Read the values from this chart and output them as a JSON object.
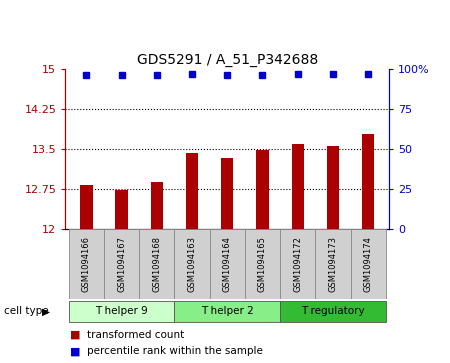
{
  "title": "GDS5291 / A_51_P342688",
  "samples": [
    "GSM1094166",
    "GSM1094167",
    "GSM1094168",
    "GSM1094163",
    "GSM1094164",
    "GSM1094165",
    "GSM1094172",
    "GSM1094173",
    "GSM1094174"
  ],
  "bar_values": [
    12.82,
    12.72,
    12.88,
    13.42,
    13.32,
    13.47,
    13.6,
    13.56,
    13.77
  ],
  "percentile_values": [
    96,
    96,
    96,
    97,
    96,
    96,
    97,
    97,
    97
  ],
  "bar_color": "#aa0000",
  "dot_color": "#0000cc",
  "ylim_left": [
    12,
    15
  ],
  "ylim_right": [
    0,
    100
  ],
  "yticks_left": [
    12,
    12.75,
    13.5,
    14.25,
    15
  ],
  "yticks_right": [
    0,
    25,
    50,
    75,
    100
  ],
  "dotted_lines": [
    12.75,
    13.5,
    14.25
  ],
  "cell_groups": [
    {
      "label": "T helper 9",
      "start": 0,
      "end": 3,
      "color": "#ccffcc"
    },
    {
      "label": "T helper 2",
      "start": 3,
      "end": 6,
      "color": "#88ee88"
    },
    {
      "label": "T regulatory",
      "start": 6,
      "end": 9,
      "color": "#33bb33"
    }
  ],
  "legend_bar_label": "transformed count",
  "legend_dot_label": "percentile rank within the sample",
  "cell_type_label": "cell type",
  "sample_box_color": "#d0d0d0",
  "plot_bg_color": "#ffffff"
}
